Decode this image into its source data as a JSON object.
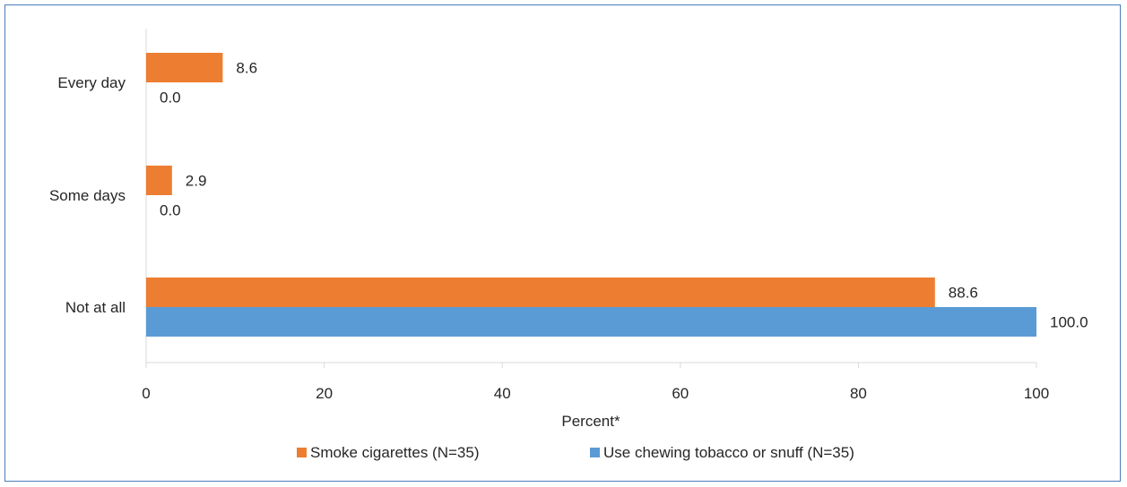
{
  "chart_data": {
    "type": "bar",
    "orientation": "horizontal",
    "categories": [
      "Every day",
      "Some days",
      "Not at all"
    ],
    "series": [
      {
        "name": "Smoke cigarettes (N=35)",
        "values": [
          8.6,
          2.9,
          88.6
        ],
        "color": "#ED7D31",
        "labels": [
          "8.6",
          "2.9",
          "88.6"
        ]
      },
      {
        "name": "Use chewing tobacco or snuff (N=35)",
        "values": [
          0.0,
          0.0,
          100.0
        ],
        "color": "#5B9BD5",
        "labels": [
          "0.0",
          "0.0",
          "100.0"
        ]
      }
    ],
    "xlabel": "Percent*",
    "xlim": [
      0,
      100
    ],
    "xticks": [
      "0",
      "20",
      "40",
      "60",
      "80",
      "100"
    ],
    "grid": false,
    "legend": "bottom",
    "frame_color": "#4A7EBB"
  }
}
